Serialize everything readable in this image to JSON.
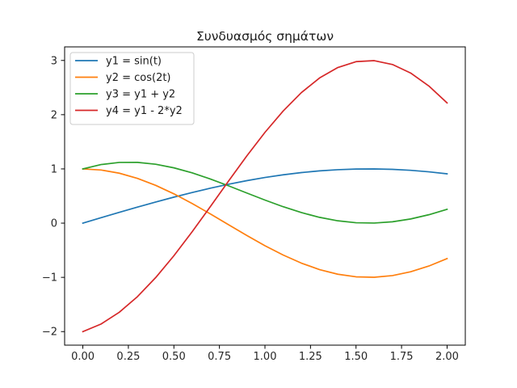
{
  "chart_data": {
    "type": "line",
    "title": "Συνδυασμός σημάτων",
    "xlabel": "",
    "ylabel": "",
    "xlim": [
      -0.1,
      2.1
    ],
    "ylim": [
      -2.25,
      3.25
    ],
    "xticks": [
      0.0,
      0.25,
      0.5,
      0.75,
      1.0,
      1.25,
      1.5,
      1.75,
      2.0
    ],
    "xtick_labels": [
      "0.00",
      "0.25",
      "0.50",
      "0.75",
      "1.00",
      "1.25",
      "1.50",
      "1.75",
      "2.00"
    ],
    "yticks": [
      -2,
      -1,
      0,
      1,
      2,
      3
    ],
    "ytick_labels": [
      "−2",
      "−1",
      "0",
      "1",
      "2",
      "3"
    ],
    "grid": false,
    "legend_position": "top-left",
    "x": [
      0.0,
      0.1,
      0.2,
      0.3,
      0.4,
      0.5,
      0.6,
      0.7,
      0.8,
      0.9,
      1.0,
      1.1,
      1.2,
      1.3,
      1.4,
      1.5,
      1.6,
      1.7,
      1.8,
      1.9,
      2.0
    ],
    "series": [
      {
        "name": "y1 = sin(t)",
        "color": "#1f77b4",
        "values": [
          0.0,
          0.0998,
          0.1987,
          0.2955,
          0.3894,
          0.4794,
          0.5646,
          0.6442,
          0.7174,
          0.7833,
          0.8415,
          0.8912,
          0.932,
          0.9636,
          0.9854,
          0.9975,
          0.9996,
          0.9917,
          0.9738,
          0.9463,
          0.9093
        ]
      },
      {
        "name": "y2 = cos(2t)",
        "color": "#ff7f0e",
        "values": [
          1.0,
          0.9801,
          0.9211,
          0.8253,
          0.6967,
          0.5403,
          0.3624,
          0.17,
          -0.0292,
          -0.2272,
          -0.4161,
          -0.5885,
          -0.7374,
          -0.8569,
          -0.9422,
          -0.99,
          -0.9983,
          -0.9668,
          -0.8968,
          -0.791,
          -0.6536
        ]
      },
      {
        "name": "y3 = y1 + y2",
        "color": "#2ca02c",
        "values": [
          1.0,
          1.0799,
          1.1198,
          1.1208,
          1.0861,
          1.0197,
          0.927,
          0.8142,
          0.6882,
          0.5561,
          0.4254,
          0.3027,
          0.1946,
          0.1067,
          0.0432,
          0.0075,
          0.0013,
          0.0249,
          0.077,
          0.1553,
          0.2557
        ]
      },
      {
        "name": "y4 = y1 - 2*y2",
        "color": "#d62728",
        "values": [
          -2.0,
          -1.8604,
          -1.6435,
          -1.3551,
          -1.004,
          -0.6012,
          -0.1602,
          0.3042,
          0.7758,
          1.2377,
          1.6737,
          2.0682,
          2.4068,
          2.6774,
          2.8698,
          2.9775,
          2.9962,
          2.9253,
          2.7674,
          2.5283,
          2.2165
        ]
      }
    ]
  }
}
